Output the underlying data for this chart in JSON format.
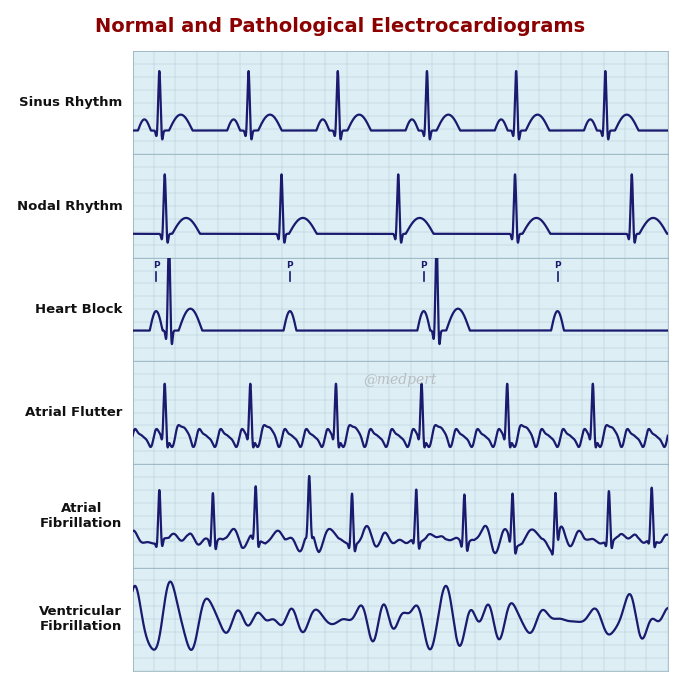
{
  "title": "Normal and Pathological Electrocardiograms",
  "title_color": "#8B0000",
  "title_fontsize": 14,
  "bg_color": "#deeef5",
  "grid_color_major": "#b0cdd8",
  "grid_color_minor": "#c8dde6",
  "line_color": "#1a1a6e",
  "line_width": 1.6,
  "label_color": "#111111",
  "label_fontsize": 9.5,
  "watermark": "@medpert",
  "watermark_color": "#aaaaaa",
  "rows": [
    "Sinus Rhythm",
    "Nodal Rhythm",
    "Heart Block",
    "Atrial Flutter",
    "Atrial\nFibrillation",
    "Ventricular\nFibrillation"
  ]
}
